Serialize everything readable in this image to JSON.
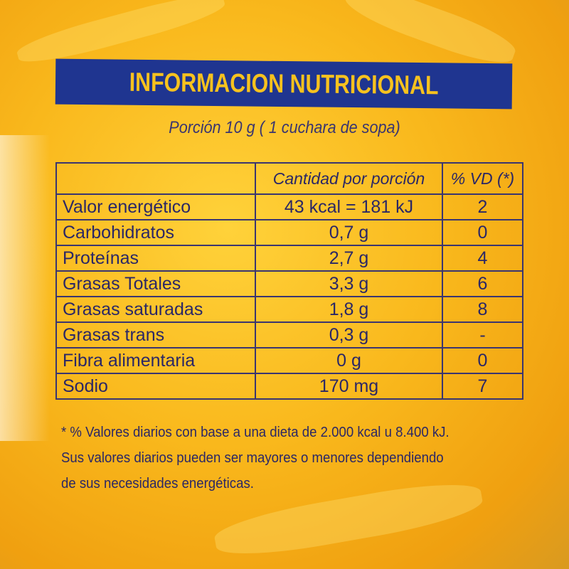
{
  "title": "INFORMACION NUTRICIONAL",
  "portion": "Porción 10 g ( 1 cuchara de sopa)",
  "table": {
    "headers": [
      "",
      "Cantidad por porción",
      "% VD (*)"
    ],
    "rows": [
      [
        "Valor energético",
        "43 kcal = 181 kJ",
        "2"
      ],
      [
        "Carbohidratos",
        "0,7 g",
        "0"
      ],
      [
        "Proteínas",
        "2,7 g",
        "4"
      ],
      [
        "Grasas Totales",
        "3,3 g",
        "6"
      ],
      [
        "Grasas saturadas",
        "1,8 g",
        "8"
      ],
      [
        "Grasas trans",
        "0,3 g",
        "-"
      ],
      [
        "Fibra alimentaria",
        "0 g",
        "0"
      ],
      [
        "Sodio",
        "170 mg",
        "7"
      ]
    ]
  },
  "footnote": [
    "* % Valores diarios con base a una dieta de 2.000 kcal u 8.400 kJ.",
    "Sus valores diarios pueden ser mayores o menores dependiendo",
    "de sus necesidades energéticas."
  ],
  "colors": {
    "banner": "#1f3590",
    "banner_text": "#f7c21e",
    "text": "#2b2766",
    "background": "#f9b81c"
  }
}
